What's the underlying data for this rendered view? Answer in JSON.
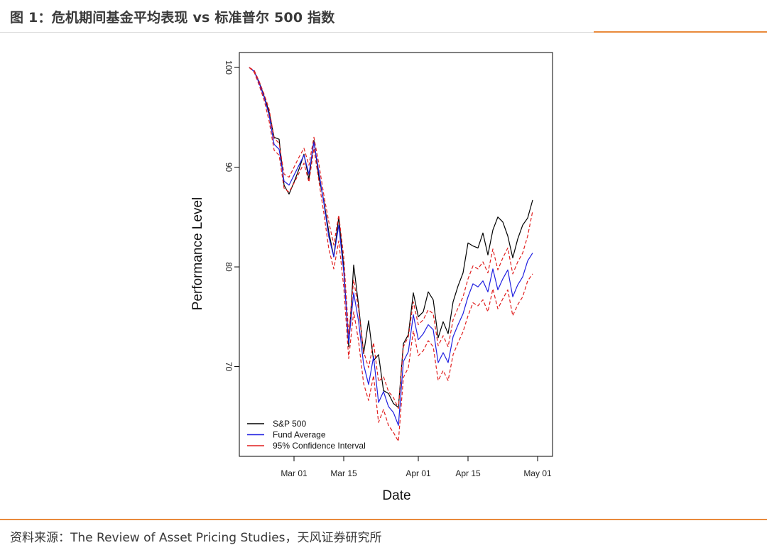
{
  "header": {
    "title": "图 1：危机期间基金平均表现 vs 标准普尔 500 指数"
  },
  "footer": {
    "source_label": "资料来源：",
    "source_text": "The Review of Asset Pricing Studies，天风证券研究所"
  },
  "colors": {
    "accent": "#e98a3b",
    "sp500": "#000000",
    "fund": "#1f1fe0",
    "ci": "#e01f1f"
  },
  "chart_data": {
    "type": "line",
    "title": "",
    "xlabel": "Date",
    "ylabel": "Performance Level",
    "ylim": [
      61,
      101.5
    ],
    "xlim": [
      -4,
      59
    ],
    "yticks": [
      70,
      80,
      90,
      100
    ],
    "xticks": [
      {
        "label": "Mar 01",
        "x": 7
      },
      {
        "label": "Mar 15",
        "x": 17
      },
      {
        "label": "Apr 01",
        "x": 32
      },
      {
        "label": "Apr 15",
        "x": 42
      },
      {
        "label": "May 01",
        "x": 56
      }
    ],
    "x": [
      -2,
      -1,
      0,
      1,
      2,
      3,
      4,
      5,
      6,
      7,
      8,
      9,
      10,
      11,
      12,
      13,
      14,
      15,
      16,
      17,
      18,
      19,
      20,
      21,
      22,
      23,
      24,
      25,
      26,
      27,
      28,
      29,
      30,
      31,
      32,
      33,
      34,
      35,
      36,
      37,
      38,
      39,
      40,
      41,
      42,
      43,
      44,
      45,
      46,
      47,
      48,
      49,
      50,
      51,
      52,
      53,
      54,
      55
    ],
    "series": [
      {
        "name": "S&P 500",
        "color": "#000000",
        "dash": false,
        "values": [
          100,
          99.6,
          98.5,
          97.1,
          95.5,
          93,
          92.8,
          88.2,
          87.3,
          88.5,
          89.8,
          91.3,
          88.8,
          92.7,
          89,
          86.6,
          83.5,
          81,
          85,
          80,
          72,
          80.2,
          76.1,
          71.3,
          74.6,
          70.6,
          71.2,
          67.6,
          67.3,
          66.3,
          65.9,
          72.3,
          73.2,
          77.4,
          75,
          75.5,
          77.5,
          76.7,
          72.9,
          74.5,
          73.3,
          76.5,
          78.1,
          79.4,
          82.4,
          82.1,
          81.9,
          83.4,
          81.2,
          83.7,
          85,
          84.5,
          83.1,
          80.9,
          82.8,
          84.2,
          84.9,
          86.7
        ]
      },
      {
        "name": "Fund Average",
        "color": "#1f1fe0",
        "dash": false,
        "values": [
          100,
          99.6,
          98.4,
          97,
          95.2,
          92.3,
          91.8,
          88.6,
          88.2,
          89.2,
          90.2,
          91.2,
          89.3,
          92.5,
          89.5,
          86.4,
          83,
          81,
          84.2,
          79.5,
          72.4,
          77.4,
          74.5,
          70.2,
          68.2,
          71,
          66.4,
          67.5,
          66,
          65.4,
          64.1,
          70.5,
          71.5,
          75.2,
          72.7,
          73.3,
          74.2,
          73.7,
          70.4,
          71.4,
          70.4,
          73,
          74.2,
          75.3,
          77,
          78.3,
          78,
          78.6,
          77.5,
          79.8,
          77.7,
          78.8,
          79.7,
          77,
          78.2,
          79,
          80.6,
          81.4
        ]
      },
      {
        "name": "95% Confidence Interval",
        "color": "#e01f1f",
        "dash": true,
        "values": [
          100,
          99.7,
          98.6,
          97.3,
          95.8,
          92.9,
          92.4,
          89.3,
          89,
          90,
          91,
          91.9,
          90.2,
          93,
          90.3,
          87.2,
          84.5,
          82.2,
          85.2,
          81,
          73.2,
          78.7,
          75.7,
          71.5,
          69.9,
          72.4,
          68.5,
          69,
          67.5,
          66.9,
          65.8,
          72,
          73,
          76.5,
          74.2,
          74.7,
          75.7,
          75.3,
          72.1,
          73.1,
          72,
          74.7,
          75.9,
          77,
          78.8,
          80.1,
          79.8,
          80.5,
          79.4,
          81.8,
          79.7,
          80.9,
          81.9,
          79.3,
          80.5,
          81.4,
          83.1,
          85.6
        ]
      },
      {
        "name": "95% Confidence Interval",
        "color": "#e01f1f",
        "dash": true,
        "legend": false,
        "values": [
          100,
          99.5,
          98.2,
          96.7,
          94.6,
          91.7,
          91.2,
          87.9,
          87.5,
          88.4,
          89.4,
          90.4,
          88.5,
          91.9,
          88.6,
          85.4,
          81.8,
          79.8,
          82.6,
          78,
          70.8,
          75.5,
          72.5,
          68.3,
          66.6,
          69.1,
          64.4,
          65.7,
          64.1,
          63.4,
          62.5,
          68.9,
          69.9,
          73.6,
          71.1,
          71.6,
          72.6,
          72,
          68.6,
          69.6,
          68.6,
          71.2,
          72.4,
          73.5,
          75.1,
          76.4,
          76.1,
          76.7,
          75.5,
          77.8,
          75.8,
          76.8,
          77.7,
          75.1,
          76.2,
          77,
          78.6,
          79.3
        ]
      }
    ],
    "legend": [
      "S&P 500",
      "Fund Average",
      "95% Confidence Interval"
    ],
    "legend_position": "bottom-left"
  }
}
